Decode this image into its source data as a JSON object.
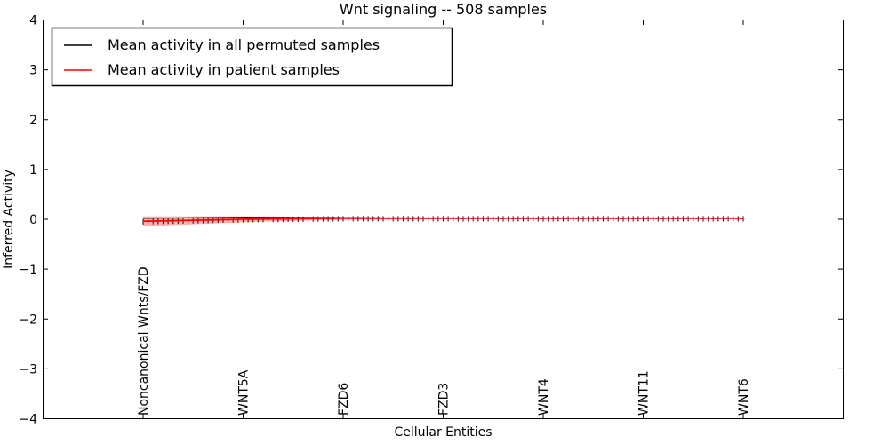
{
  "title": "Wnt signaling -- 508 samples",
  "axes": {
    "xlabel": "Cellular Entities",
    "ylabel": "Inferred Activity"
  },
  "legend": {
    "items": [
      {
        "label": "Mean activity in all permuted samples",
        "color": "#000000"
      },
      {
        "label": "Mean activity in patient samples",
        "color": "#ff0000"
      }
    ]
  },
  "chart_data": {
    "type": "line",
    "title": "Wnt signaling -- 508 samples",
    "xlabel": "Cellular Entities",
    "ylabel": "Inferred Activity",
    "ylim": [
      -4,
      4
    ],
    "yticks": [
      4,
      3,
      2,
      1,
      0,
      -1,
      -2,
      -3,
      -4
    ],
    "grid": false,
    "legend_position": "upper left",
    "num_points": 121,
    "label_every": 20,
    "x_ticklabels": [
      "Noncanonical Wnts/FZD",
      "WNT5A",
      "FZD6",
      "FZD3",
      "WNT4",
      "WNT11",
      "WNT6"
    ],
    "series": [
      {
        "name": "Mean activity in all permuted samples",
        "color": "#000000",
        "values_at_ticks": [
          0.02,
          0.04,
          0.03,
          0.02,
          0.02,
          0.02,
          0.02
        ]
      },
      {
        "name": "Mean activity in patient samples",
        "color": "#ff0000",
        "values_at_ticks": [
          -0.04,
          0.0,
          0.02,
          0.02,
          0.02,
          0.02,
          0.02
        ]
      }
    ],
    "error_band": {
      "around_series": "Mean activity in patient samples",
      "color": "#ff0000",
      "opacity": 0.3,
      "halfwidth_at_ticks": [
        0.1,
        0.06,
        0.03,
        0.02,
        0.018,
        0.018,
        0.018
      ]
    },
    "error_caps": {
      "color": "#000000",
      "at_every_point": true
    }
  }
}
